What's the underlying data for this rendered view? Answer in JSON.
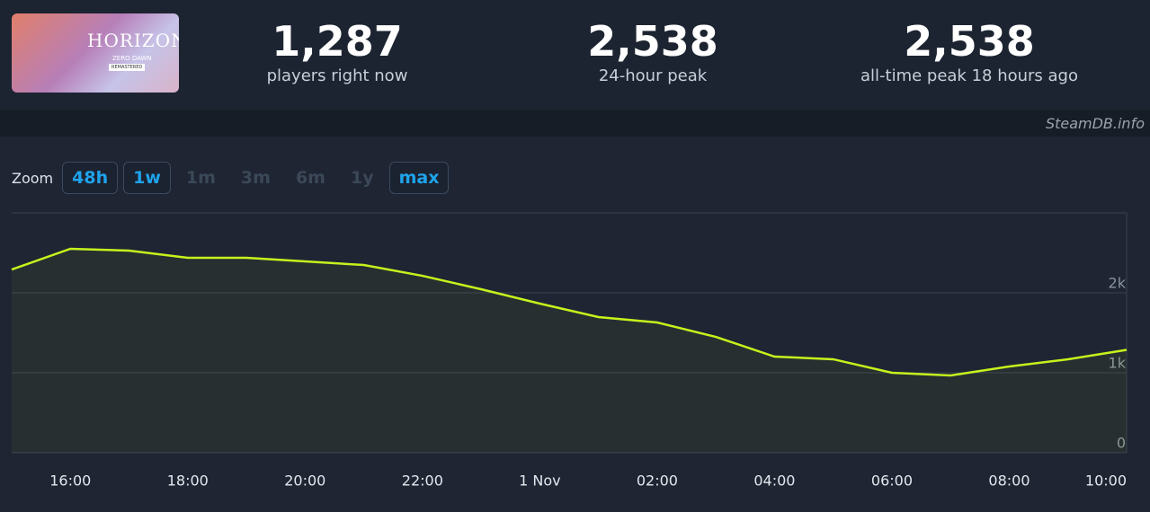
{
  "header": {
    "logo": {
      "title": "HORIZON",
      "subtitle": "ZERO DAWN",
      "badge": "REMASTERED"
    },
    "stats": [
      {
        "value": "1,287",
        "label": "players right now"
      },
      {
        "value": "2,538",
        "label": "24-hour peak"
      },
      {
        "value": "2,538",
        "label": "all-time peak 18 hours ago"
      }
    ]
  },
  "watermark": "SteamDB.info",
  "zoom": {
    "label": "Zoom",
    "buttons": [
      {
        "label": "48h",
        "active": true
      },
      {
        "label": "1w",
        "active": true
      },
      {
        "label": "1m",
        "active": false
      },
      {
        "label": "3m",
        "active": false
      },
      {
        "label": "6m",
        "active": false
      },
      {
        "label": "1y",
        "active": false
      },
      {
        "label": "max",
        "active": true
      }
    ]
  },
  "chart_data": {
    "type": "area",
    "categories": [
      null,
      "16:00",
      null,
      "18:00",
      null,
      "20:00",
      null,
      "22:00",
      null,
      "1 Nov",
      null,
      "02:00",
      null,
      "04:00",
      null,
      "06:00",
      null,
      "08:00",
      null,
      "10:00"
    ],
    "series": [
      {
        "color": "#c5f31c",
        "values": [
          2292,
          2551,
          2528,
          2438,
          2438,
          2393,
          2348,
          2213,
          2045,
          1865,
          1697,
          1629,
          1449,
          1202,
          1169,
          1000,
          966,
          1079,
          1169,
          1287
        ]
      }
    ],
    "ylim": [
      0,
      3000
    ],
    "yticks": [
      0,
      {
        "value": 1000,
        "label": "1k"
      },
      {
        "value": 2000,
        "label": "2k"
      }
    ],
    "grid": true
  }
}
